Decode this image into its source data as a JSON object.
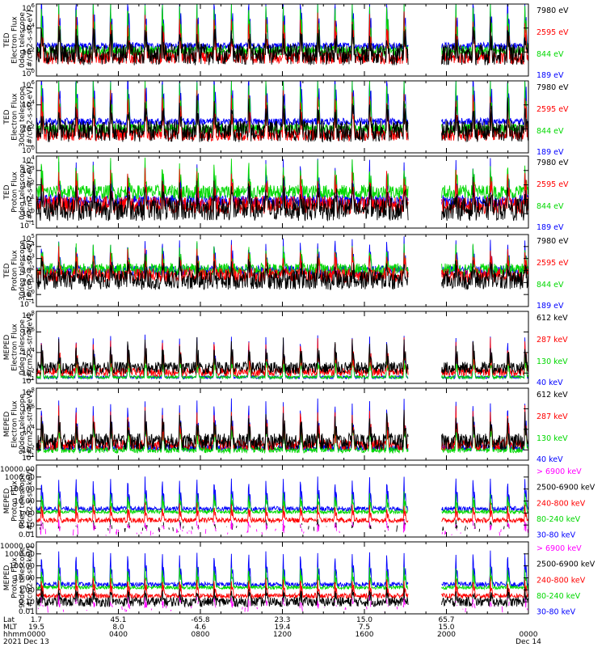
{
  "chart_data": {
    "type": "line",
    "date_year": "2021",
    "x_axis": {
      "rows": [
        {
          "label": "Lat",
          "values": [
            "1.7",
            "45.1",
            "-65.8",
            "23.3",
            "15.0",
            "65.7",
            ""
          ]
        },
        {
          "label": "MLT",
          "values": [
            "19.5",
            "8.0",
            "4.6",
            "19.4",
            "7.5",
            "15.0",
            ""
          ]
        },
        {
          "label": "hhmm",
          "values": [
            "0000",
            "0400",
            "0800",
            "1200",
            "1600",
            "2000",
            "0000"
          ]
        }
      ],
      "hour_ticks": [
        0,
        4,
        8,
        12,
        16,
        20,
        24
      ],
      "dates": [
        {
          "hour": 0,
          "label": "Dec 13"
        },
        {
          "hour": 24,
          "label": "Dec 14"
        }
      ],
      "data_gap_hours": [
        18.15,
        19.75
      ]
    },
    "panels": [
      {
        "ylabel": [
          "TED",
          "Electron Flux",
          "0deg telescope",
          "[#/cm2-s-str-eV]"
        ],
        "yscale": "log",
        "ylim": [
          1,
          1000000
        ],
        "ytick_labels": [
          "10^0",
          "10^2",
          "10^4",
          "10^6"
        ],
        "series": [
          {
            "name": "7980 eV",
            "color": "#000000",
            "base": 1.8,
            "peak": 2.3,
            "noise": 0.9
          },
          {
            "name": "2595 eV",
            "color": "#ff0000",
            "base": 1.5,
            "peak": 3.4,
            "noise": 0.5
          },
          {
            "name": "844 eV",
            "color": "#00d800",
            "base": 2.1,
            "peak": 4.2,
            "noise": 0.4
          },
          {
            "name": "189 eV",
            "color": "#0000ff",
            "base": 2.5,
            "peak": 4.6,
            "noise": 0.3
          }
        ]
      },
      {
        "ylabel": [
          "TED",
          "Electron Flux",
          "30deg telescope",
          "[#/cm2-s-str-eV]"
        ],
        "yscale": "log",
        "ylim": [
          1,
          1000000
        ],
        "ytick_labels": [
          "10^0",
          "10^2",
          "10^4",
          "10^6"
        ],
        "series": [
          {
            "name": "7980 eV",
            "color": "#000000",
            "base": 1.8,
            "peak": 2.4,
            "noise": 0.9
          },
          {
            "name": "2595 eV",
            "color": "#ff0000",
            "base": 1.5,
            "peak": 3.5,
            "noise": 0.5
          },
          {
            "name": "844 eV",
            "color": "#00d800",
            "base": 2.0,
            "peak": 4.4,
            "noise": 0.4
          },
          {
            "name": "189 eV",
            "color": "#0000ff",
            "base": 2.6,
            "peak": 4.8,
            "noise": 0.3
          }
        ]
      },
      {
        "ylabel": [
          "TED",
          "Proton Flux",
          "0deg telescope",
          "[#/cm2-s-str-eV]"
        ],
        "yscale": "log",
        "ylim": [
          0.1,
          10000
        ],
        "ytick_labels": [
          "10^-1",
          "10^0",
          "10^1",
          "10^2",
          "10^3",
          "10^4"
        ],
        "series": [
          {
            "name": "7980 eV",
            "color": "#000000",
            "base": 0.3,
            "peak": 1.7,
            "noise": 0.8
          },
          {
            "name": "2595 eV",
            "color": "#ff0000",
            "base": 0.6,
            "peak": 2.2,
            "noise": 0.6
          },
          {
            "name": "844 eV",
            "color": "#00d800",
            "base": 1.5,
            "peak": 2.0,
            "noise": 0.5
          },
          {
            "name": "189 eV",
            "color": "#0000ff",
            "base": 0.9,
            "peak": 2.6,
            "noise": 0.4
          }
        ]
      },
      {
        "ylabel": [
          "TED",
          "Proton Flux",
          "30deg telescope",
          "[#/cm2-s-str-eV]"
        ],
        "yscale": "log",
        "ylim": [
          0.1,
          100000
        ],
        "ytick_labels": [
          "10^-1",
          "10^0",
          "10^1",
          "10^2",
          "10^3",
          "10^4",
          "10^5"
        ],
        "series": [
          {
            "name": "7980 eV",
            "color": "#000000",
            "base": 1.2,
            "peak": 1.5,
            "noise": 0.8
          },
          {
            "name": "2595 eV",
            "color": "#ff0000",
            "base": 1.6,
            "peak": 2.0,
            "noise": 0.6
          },
          {
            "name": "844 eV",
            "color": "#00d800",
            "base": 2.1,
            "peak": 1.9,
            "noise": 0.5
          },
          {
            "name": "189 eV",
            "color": "#0000ff",
            "base": 2.0,
            "peak": 2.5,
            "noise": 0.4
          }
        ]
      },
      {
        "ylabel": [
          "MEPED",
          "Electron Flux",
          "0deg telescope",
          "[#/cm2-s-str-MeV]"
        ],
        "yscale": "log",
        "ylim": [
          10,
          100000000
        ],
        "ytick_labels": [
          "10^1",
          "10^2",
          "10^4",
          "10^6",
          "10^8"
        ],
        "series": [
          {
            "name": "612 keV",
            "color": "#000000",
            "base": 2.5,
            "peak": 2.5,
            "noise": 0.6
          },
          {
            "name": "287 keV",
            "color": "#ff0000",
            "base": 2.1,
            "peak": 3.0,
            "noise": 0.4
          },
          {
            "name": "130 keV",
            "color": "#00d800",
            "base": 1.6,
            "peak": 2.5,
            "noise": 0.15
          },
          {
            "name": "40 keV",
            "color": "#0000ff",
            "base": 1.6,
            "peak": 4.0,
            "noise": 0.15
          }
        ]
      },
      {
        "ylabel": [
          "MEPED",
          "Electron Flux",
          "90deg telescope",
          "[#/cm2-s-str-MeV]"
        ],
        "yscale": "log",
        "ylim": [
          10,
          100000000
        ],
        "ytick_labels": [
          "10^1",
          "10^2",
          "10^4",
          "10^6",
          "10^8"
        ],
        "series": [
          {
            "name": "612 keV",
            "color": "#000000",
            "base": 2.8,
            "peak": 2.6,
            "noise": 0.8
          },
          {
            "name": "287 keV",
            "color": "#ff0000",
            "base": 2.5,
            "peak": 3.5,
            "noise": 0.5
          },
          {
            "name": "130 keV",
            "color": "#00d800",
            "base": 2.0,
            "peak": 3.6,
            "noise": 0.3
          },
          {
            "name": "40 keV",
            "color": "#0000ff",
            "base": 2.2,
            "peak": 4.6,
            "noise": 0.3
          }
        ]
      },
      {
        "ylabel": [
          "MEPED",
          "Proton Flux",
          "0deg telescope",
          "[#/cm2-s-str-keV]"
        ],
        "yscale": "log",
        "ylim": [
          0.01,
          10000
        ],
        "ytick_labels": [
          "0.01",
          "0.10",
          "1.00",
          "10.00",
          "100.00",
          "1000.00",
          "10000.00"
        ],
        "series": [
          {
            "name": "> 6900 keV",
            "color": "#ff00ff",
            "base": -1.6,
            "peak": 0.9,
            "noise": 0.3,
            "sparse": true
          },
          {
            "name": "2500-6900 keV",
            "color": "#000000",
            "base": -1.3,
            "peak": 0.5,
            "noise": 0.3,
            "sparse": true
          },
          {
            "name": "240-800 keV",
            "color": "#ff0000",
            "base": -0.6,
            "peak": 1.3,
            "noise": 0.2
          },
          {
            "name": "80-240 keV",
            "color": "#00d800",
            "base": 0.1,
            "peak": 1.6,
            "noise": 0.15
          },
          {
            "name": "30-80 keV",
            "color": "#0000ff",
            "base": 0.35,
            "peak": 2.6,
            "noise": 0.2
          }
        ]
      },
      {
        "ylabel": [
          "MEPED",
          "Proton Flux",
          "90deg telescope",
          "[#/cm2-s-str-keV]"
        ],
        "yscale": "log",
        "ylim": [
          0.01,
          10000
        ],
        "ytick_labels": [
          "0.01",
          "0.10",
          "1.00",
          "10.00",
          "100.00",
          "1000.00",
          "10000.00"
        ],
        "series": [
          {
            "name": "> 6900 keV",
            "color": "#ff00ff",
            "base": -1.6,
            "peak": 0.9,
            "noise": 0.3,
            "sparse": true
          },
          {
            "name": "2500-6900 keV",
            "color": "#000000",
            "base": -1.0,
            "peak": 1.0,
            "noise": 0.4
          },
          {
            "name": "240-800 keV",
            "color": "#ff0000",
            "base": -0.5,
            "peak": 1.4,
            "noise": 0.2
          },
          {
            "name": "80-240 keV",
            "color": "#00d800",
            "base": 0.2,
            "peak": 1.7,
            "noise": 0.15
          },
          {
            "name": "30-80 keV",
            "color": "#0000ff",
            "base": 0.45,
            "peak": 2.7,
            "noise": 0.2
          }
        ]
      }
    ]
  }
}
